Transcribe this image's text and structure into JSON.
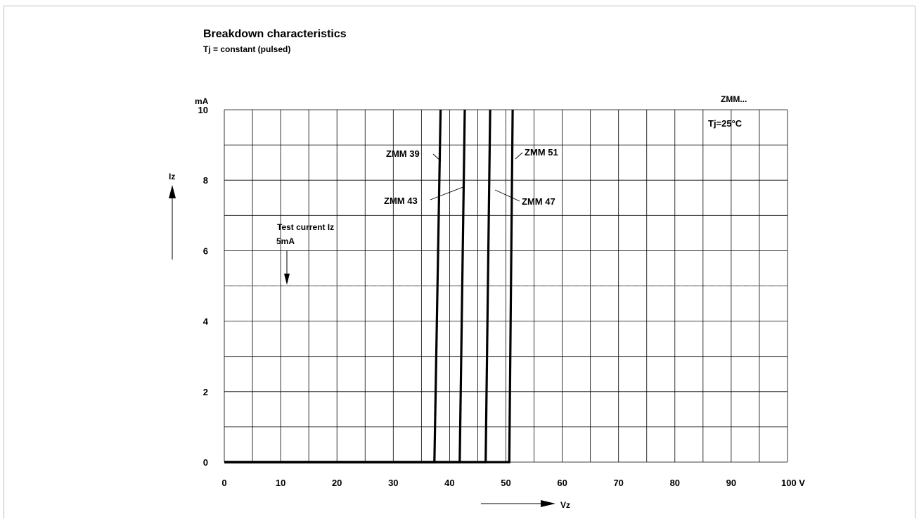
{
  "chart_data": {
    "type": "line",
    "title": "Breakdown characteristics",
    "subtitle": "Tj = constant (pulsed)",
    "device_label": "ZMM...",
    "temperature_label": "Tj=25°C",
    "xlabel": "Vz",
    "ylabel": "Iz",
    "xunit": "V",
    "yunit": "mA",
    "xlim": [
      0,
      100
    ],
    "ylim": [
      0,
      10
    ],
    "x_ticks": [
      0,
      10,
      20,
      30,
      40,
      50,
      60,
      70,
      80,
      90,
      100
    ],
    "y_ticks": [
      0,
      2,
      4,
      6,
      8,
      10
    ],
    "x_tick_labels": [
      "0",
      "10",
      "20",
      "30",
      "40",
      "50",
      "60",
      "70",
      "80",
      "90",
      "100 V"
    ],
    "y_tick_labels": [
      "0",
      "2",
      "4",
      "6",
      "8",
      "10"
    ],
    "grid": true,
    "test_current": {
      "label_line1": "Test current Iz",
      "label_line2": "5mA",
      "value": 5
    },
    "series": [
      {
        "name": "ZMM 39",
        "points": [
          [
            0,
            0
          ],
          [
            37.3,
            0
          ],
          [
            38.4,
            10
          ]
        ]
      },
      {
        "name": "ZMM 43",
        "points": [
          [
            0,
            0
          ],
          [
            41.8,
            0
          ],
          [
            42.7,
            10
          ]
        ]
      },
      {
        "name": "ZMM 47",
        "points": [
          [
            0,
            0
          ],
          [
            46.4,
            0
          ],
          [
            47.2,
            10
          ]
        ]
      },
      {
        "name": "ZMM 51",
        "points": [
          [
            0,
            0
          ],
          [
            50.6,
            0
          ],
          [
            51.2,
            10
          ]
        ]
      }
    ]
  }
}
